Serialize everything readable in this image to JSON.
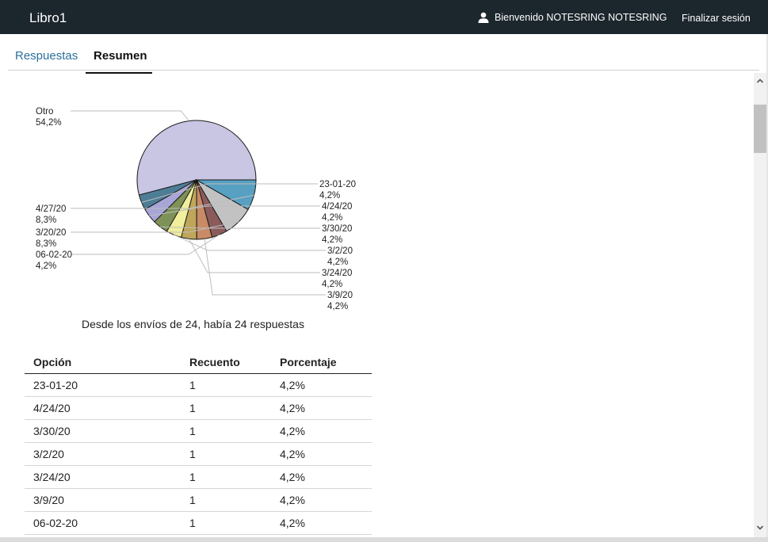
{
  "app": {
    "title": "Libro1"
  },
  "user": {
    "welcome": "Bienvenido NOTESRING NOTESRING",
    "icon": "user-icon"
  },
  "header": {
    "logout_label": "Finalizar sesión"
  },
  "tabs": [
    {
      "label": "Respuestas",
      "active": false
    },
    {
      "label": "Resumen",
      "active": true
    }
  ],
  "summary": {
    "text": "Desde los envíos de 24, había 24 respuestas"
  },
  "chart_data": {
    "type": "pie",
    "slices": [
      {
        "name": "Otro",
        "value": 54.2,
        "label": "54,2%",
        "color": "#c8c6e3"
      },
      {
        "name": "23-01-20",
        "value": 4.2,
        "label": "4,2%",
        "color": "#4e7d96"
      },
      {
        "name": "4/24/20",
        "value": 4.2,
        "label": "4,2%",
        "color": "#a8a6d6"
      },
      {
        "name": "3/30/20",
        "value": 4.2,
        "label": "4,2%",
        "color": "#7e9258"
      },
      {
        "name": "3/2/20",
        "value": 4.2,
        "label": "4,2%",
        "color": "#f1ee9c"
      },
      {
        "name": "3/24/20",
        "value": 4.2,
        "label": "4,2%",
        "color": "#bfa65a"
      },
      {
        "name": "3/9/20",
        "value": 4.2,
        "label": "4,2%",
        "color": "#c98a66"
      },
      {
        "name": "06-02-20",
        "value": 4.2,
        "label": "4,2%",
        "color": "#8b5b5c"
      },
      {
        "name": "3/20/20",
        "value": 8.3,
        "label": "8,3%",
        "color": "#c2c2c2"
      },
      {
        "name": "4/27/20",
        "value": 8.3,
        "label": "8,3%",
        "color": "#57a0c2"
      }
    ]
  },
  "table": {
    "headers": [
      "Opción",
      "Recuento",
      "Porcentaje"
    ],
    "rows": [
      [
        "23-01-20",
        "1",
        "4,2%"
      ],
      [
        "4/24/20",
        "1",
        "4,2%"
      ],
      [
        "3/30/20",
        "1",
        "4,2%"
      ],
      [
        "3/2/20",
        "1",
        "4,2%"
      ],
      [
        "3/24/20",
        "1",
        "4,2%"
      ],
      [
        "3/9/20",
        "1",
        "4,2%"
      ],
      [
        "06-02-20",
        "1",
        "4,2%"
      ]
    ]
  }
}
